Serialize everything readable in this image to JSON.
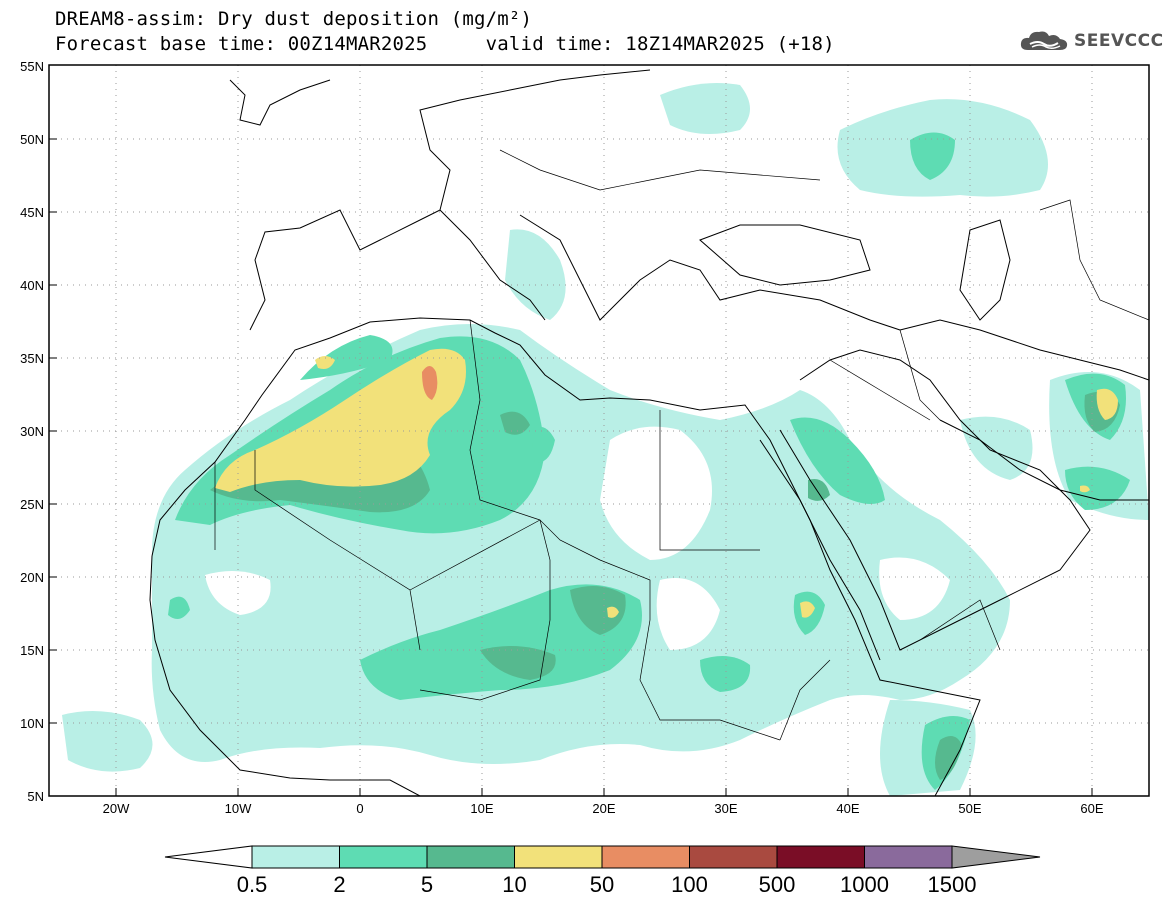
{
  "title": {
    "line1": "DREAM8-assim: Dry dust deposition (mg/m²)",
    "line2": "Forecast base time: 00Z14MAR2025     valid time: 18Z14MAR2025 (+18)"
  },
  "logo": {
    "text": "SEEVCCC",
    "icon": "cloud-icon"
  },
  "chart_data": {
    "type": "heatmap",
    "projection": "lat-lon",
    "xlim": [
      -25,
      65
    ],
    "ylim": [
      5,
      55
    ],
    "x_ticks": [
      "20W",
      "10W",
      "0",
      "10E",
      "20E",
      "30E",
      "40E",
      "50E",
      "60E"
    ],
    "y_ticks": [
      "5N",
      "10N",
      "15N",
      "20N",
      "25N",
      "30N",
      "35N",
      "40N",
      "45N",
      "50N",
      "55N"
    ],
    "grid": true,
    "colorbar": {
      "boundaries": [
        "0.5",
        "2",
        "5",
        "10",
        "50",
        "100",
        "500",
        "1000",
        "1500"
      ],
      "colors": [
        "#b9efe6",
        "#5edcb3",
        "#56b98f",
        "#f2e17a",
        "#e88d63",
        "#a94a40",
        "#7a0d26",
        "#8a6a9c"
      ],
      "under_color": "#ffffff",
      "over_color": "#9e9e9e"
    }
  }
}
